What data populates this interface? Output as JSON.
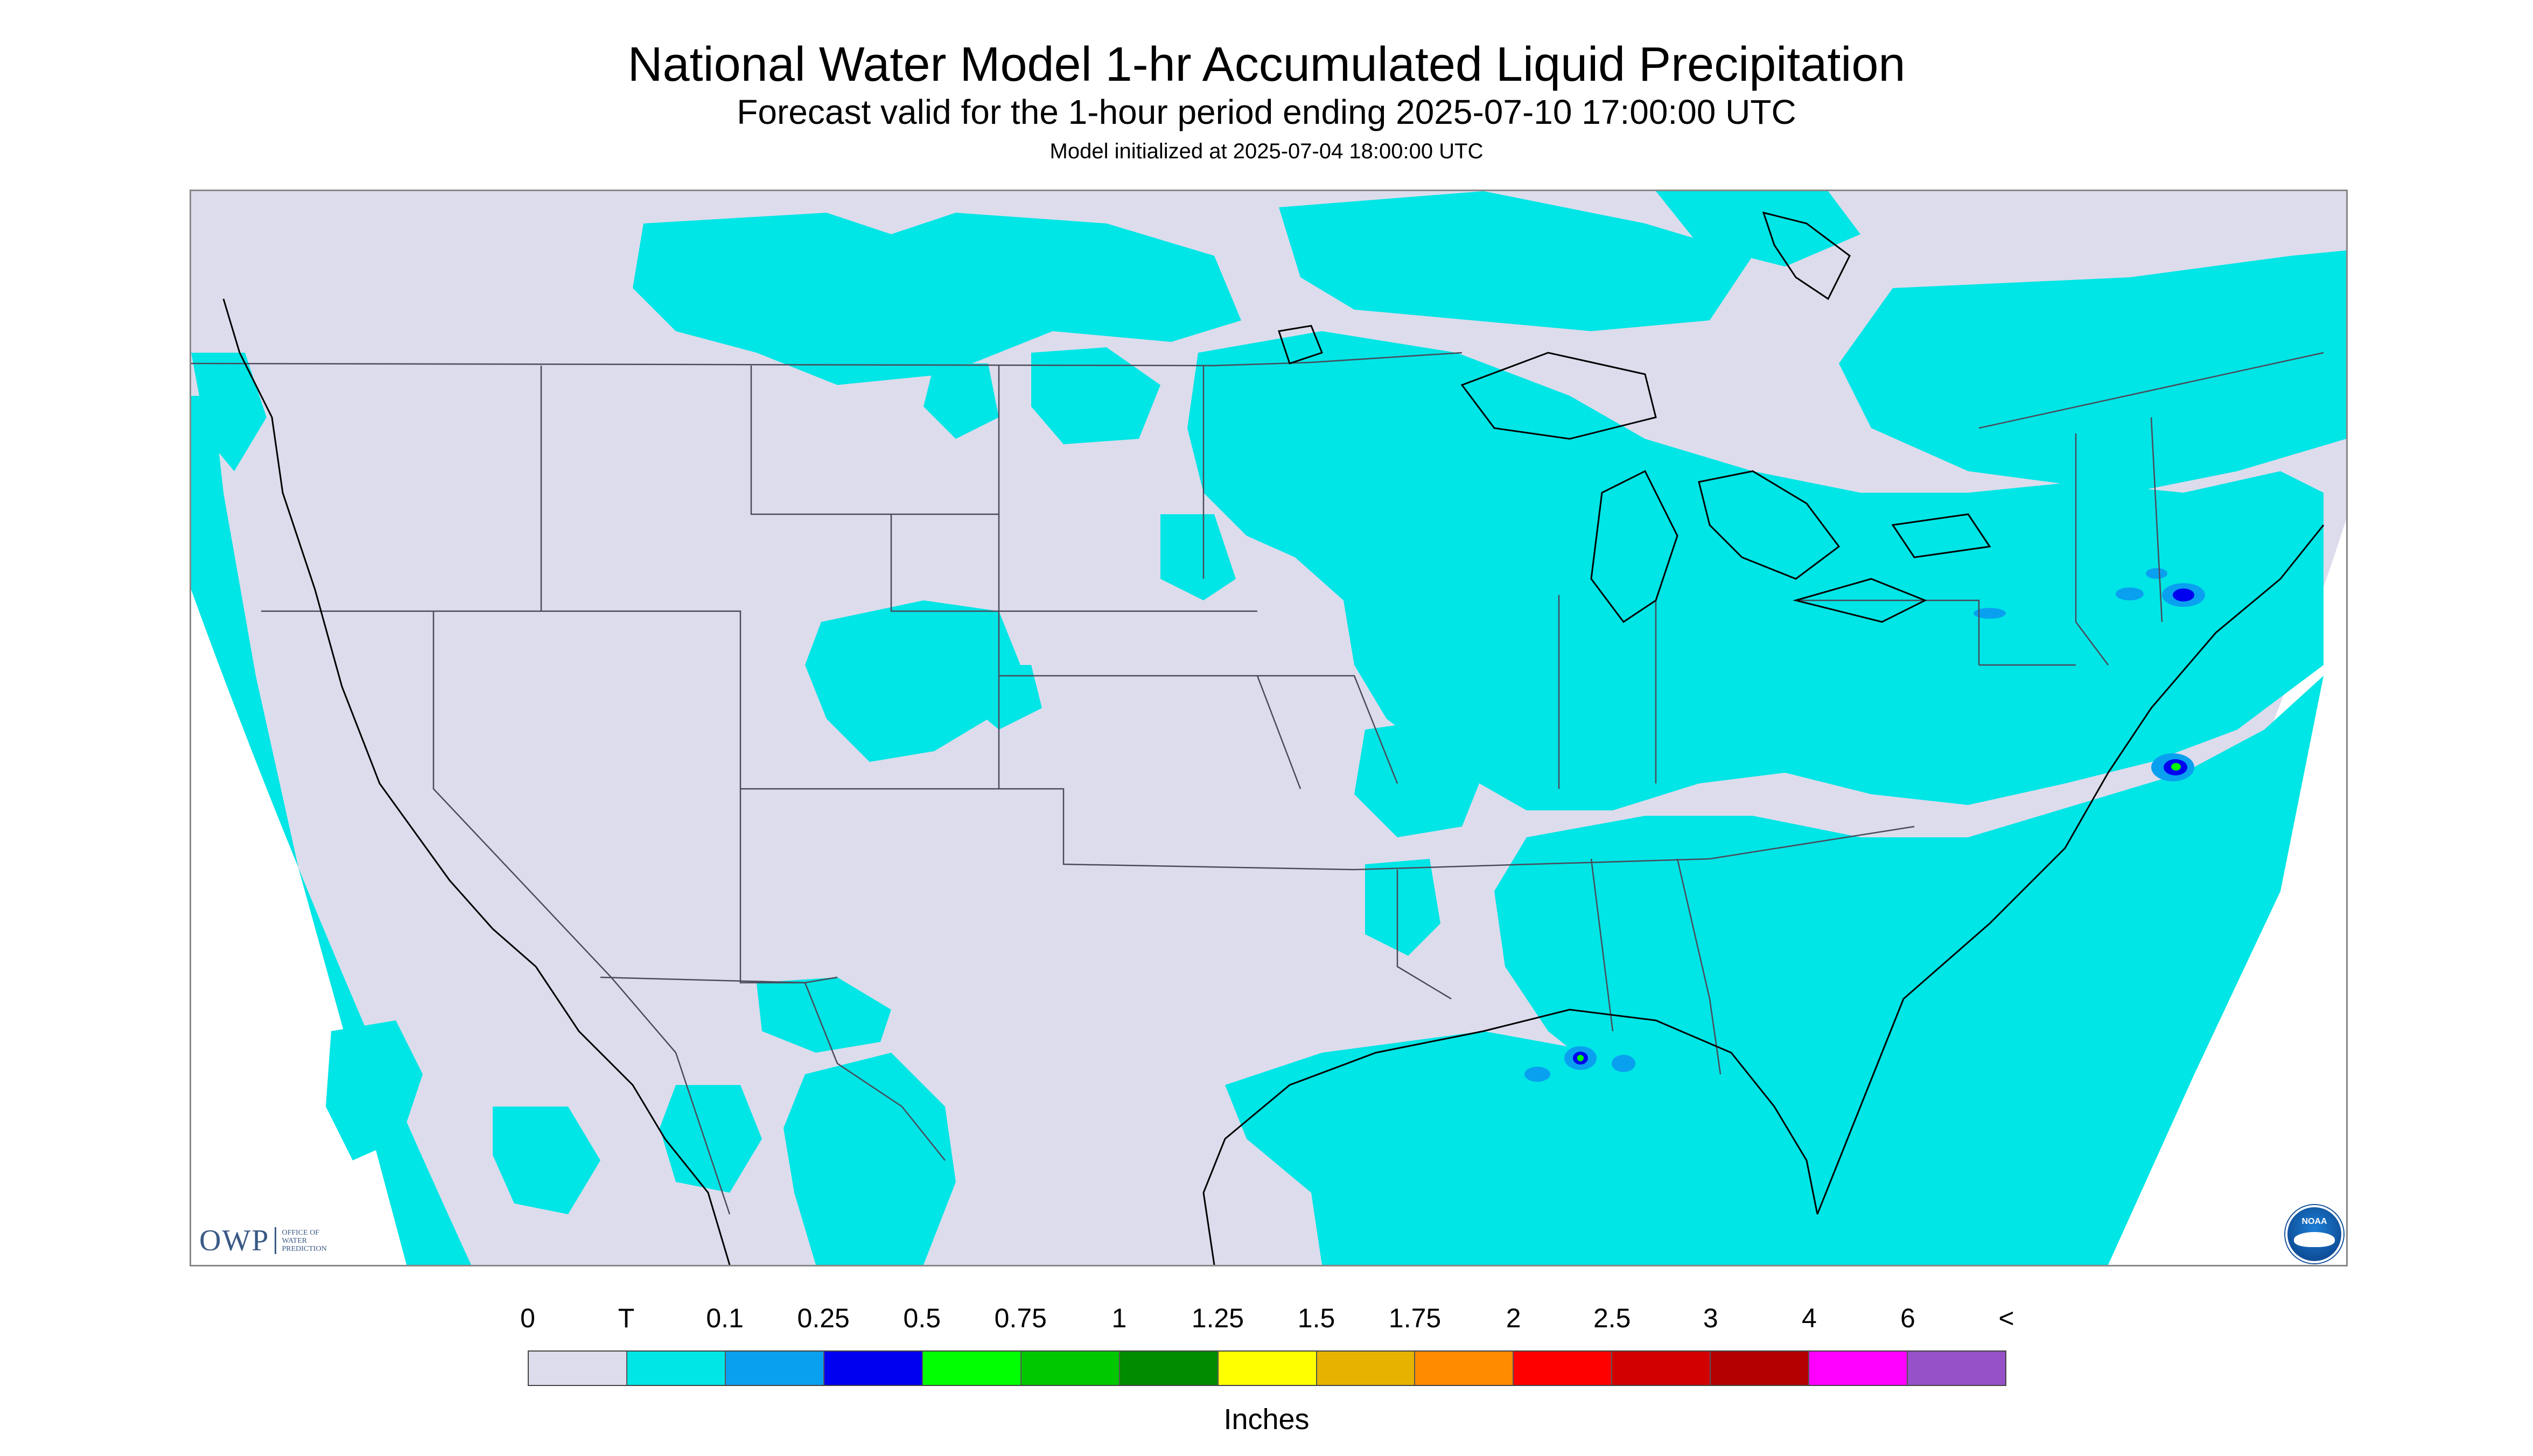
{
  "title": "National Water Model 1-hr Accumulated Liquid Precipitation",
  "subtitle": "Forecast valid for the 1-hour period ending 2025-07-10 17:00:00 UTC",
  "init_text": "Model initialized at 2025-07-04 18:00:00 UTC",
  "logos": {
    "owp_main": "OWP",
    "owp_sub_1": "Office of",
    "owp_sub_2": "Water",
    "owp_sub_3": "Prediction",
    "noaa": "NOAA"
  },
  "legend": {
    "units": "Inches",
    "tick_labels": [
      "0",
      "T",
      "0.1",
      "0.25",
      "0.5",
      "0.75",
      "1",
      "1.25",
      "1.5",
      "1.75",
      "2",
      "2.5",
      "3",
      "4",
      "6",
      "<"
    ],
    "colors": [
      "#dcdcec",
      "#00e5e5",
      "#0aa0f0",
      "#0000f0",
      "#00ff00",
      "#00c800",
      "#008c00",
      "#ffff00",
      "#e6b400",
      "#ff8c00",
      "#ff0000",
      "#d20000",
      "#b40000",
      "#ff00ff",
      "#9650c8"
    ]
  },
  "map": {
    "colors": {
      "no_data": "#dcdcec",
      "trace": "#00e5e5",
      "light": "#0aa0f0",
      "moderate": "#0000f0",
      "heavy": "#00ff00",
      "outside": "#ffffff",
      "borders": "#4a4a5a",
      "coast": "#000000"
    }
  }
}
